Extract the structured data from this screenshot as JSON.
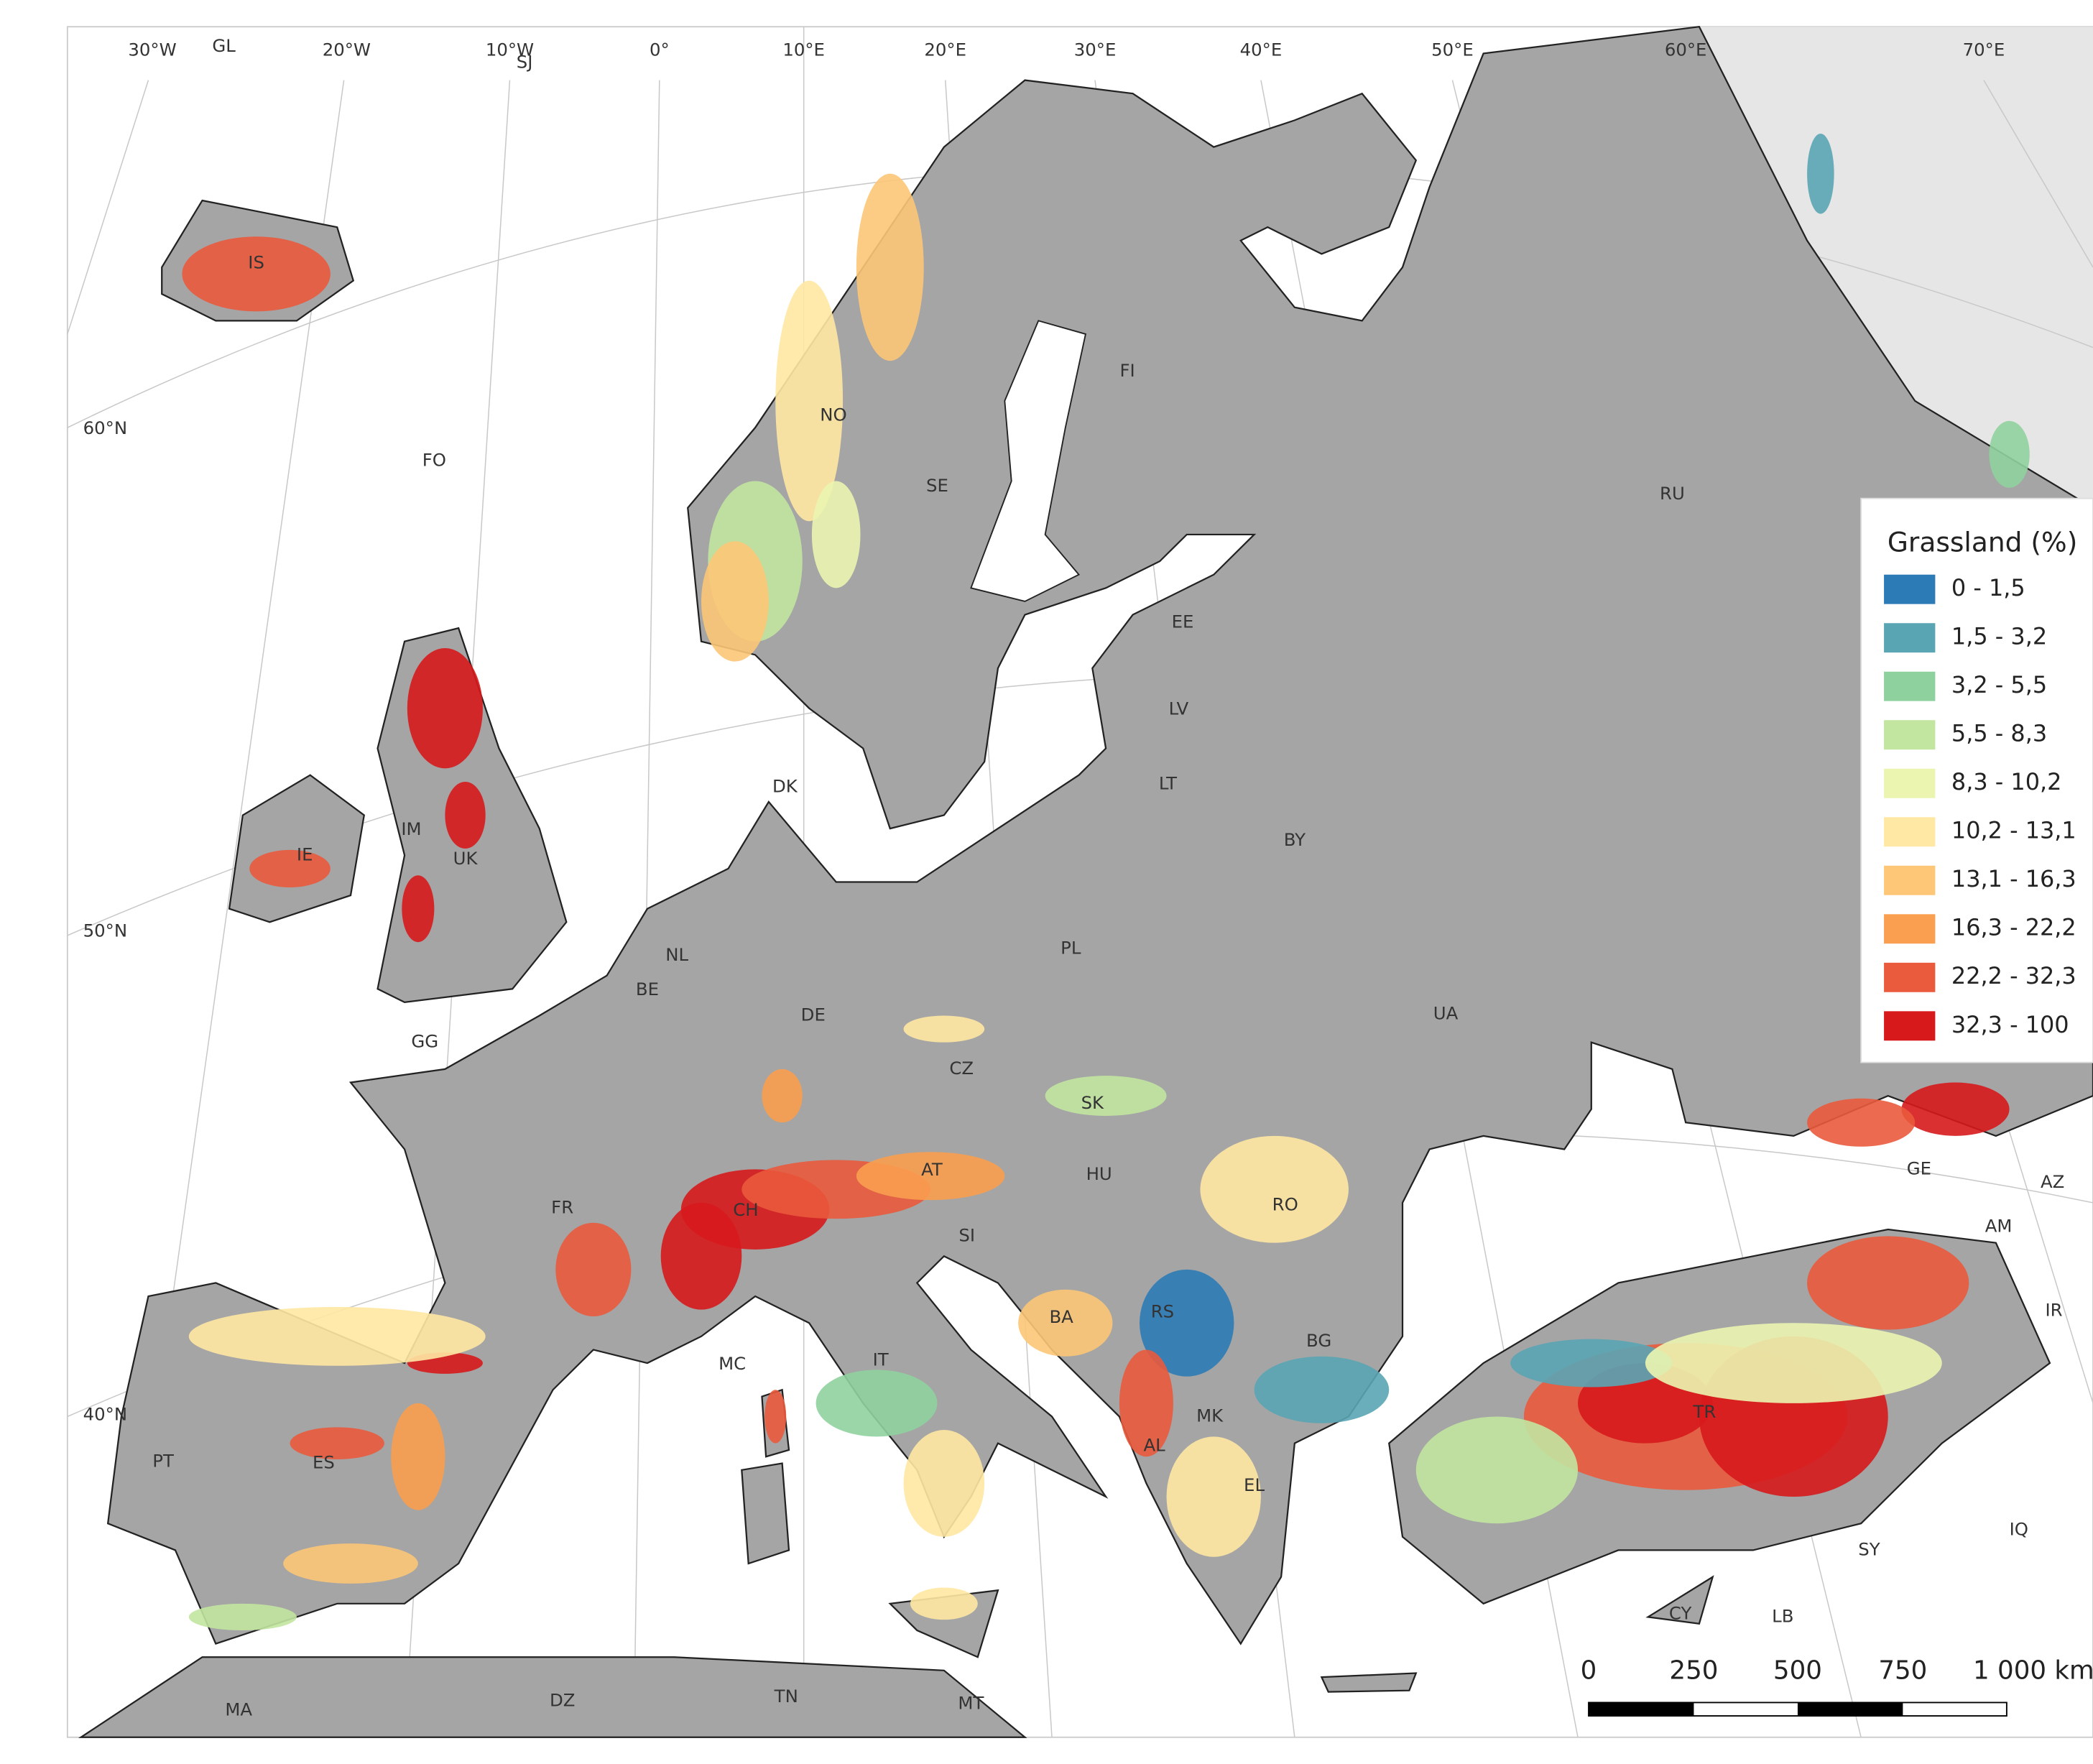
{
  "map": {
    "graticule": {
      "longitudes": [
        "30°W",
        "20°W",
        "10°W",
        "0°",
        "10°E",
        "20°E",
        "30°E",
        "40°E",
        "50°E",
        "60°E",
        "70°E"
      ],
      "latitudes": [
        "60°N",
        "50°N",
        "40°N"
      ]
    },
    "country_labels": [
      "GL",
      "SJ",
      "IS",
      "FO",
      "NO",
      "SE",
      "FI",
      "RU",
      "EE",
      "LV",
      "LT",
      "BY",
      "DK",
      "IE",
      "IM",
      "UK",
      "NL",
      "BE",
      "DE",
      "PL",
      "UA",
      "CZ",
      "SK",
      "GG",
      "FR",
      "CH",
      "AT",
      "HU",
      "RO",
      "SI",
      "BA",
      "RS",
      "BG",
      "MC",
      "IT",
      "MK",
      "AL",
      "EL",
      "TR",
      "PT",
      "ES",
      "GE",
      "AZ",
      "AM",
      "IR",
      "SY",
      "IQ",
      "LB",
      "CY",
      "MA",
      "DZ",
      "TN",
      "MT"
    ],
    "legend": {
      "title": "Grassland (%)",
      "items": [
        {
          "label": "0 - 1,5",
          "color": "#2c7bb6"
        },
        {
          "label": "1,5 - 3,2",
          "color": "#5aa5b4"
        },
        {
          "label": "3,2 - 5,5",
          "color": "#8fd19e"
        },
        {
          "label": "5,5 - 8,3",
          "color": "#c2e6a0"
        },
        {
          "label": "8,3 - 10,2",
          "color": "#ebf5b0"
        },
        {
          "label": "10,2 - 13,1",
          "color": "#ffe8a3"
        },
        {
          "label": "13,1 - 16,3",
          "color": "#fdc777"
        },
        {
          "label": "16,3 - 22,2",
          "color": "#fa9e4f"
        },
        {
          "label": "22,2 - 32,3",
          "color": "#ea5a3c"
        },
        {
          "label": "32,3 - 100",
          "color": "#d7191c"
        }
      ]
    },
    "scale_bar": {
      "labels": [
        "0",
        "250",
        "500",
        "750",
        "1 000 km"
      ]
    }
  }
}
